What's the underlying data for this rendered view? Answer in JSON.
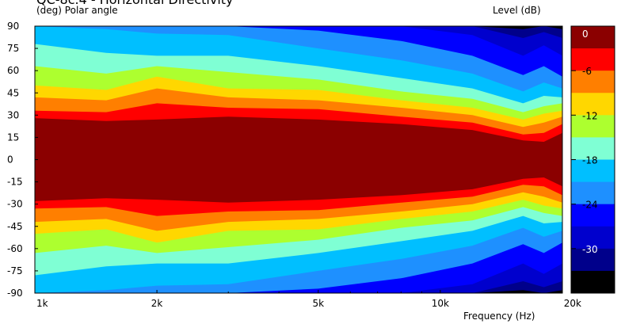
{
  "chart_data": {
    "type": "heatmap",
    "title": "QC-8c.4 - Horizontal Directivity",
    "ylabel": "(deg)  Polar angle",
    "xlabel": "Frequency  (Hz)",
    "legend_title": "Level  (dB)",
    "x_scale": "log",
    "xlim": [
      1000,
      20000
    ],
    "ylim": [
      -90,
      90
    ],
    "x_ticks": [
      {
        "value": 1000,
        "label": "1k"
      },
      {
        "value": 2000,
        "label": "2k"
      },
      {
        "value": 5000,
        "label": "5k"
      },
      {
        "value": 10000,
        "label": "10k"
      },
      {
        "value": 20000,
        "label": "20k"
      }
    ],
    "y_ticks": [
      90,
      75,
      60,
      45,
      30,
      15,
      0,
      -15,
      -30,
      -45,
      -60,
      -75,
      -90
    ],
    "colorbar": {
      "ticks": [
        0,
        -6,
        -12,
        -18,
        -24,
        -30
      ],
      "levels": [
        {
          "min": -3,
          "max": 0,
          "color": "#8b0000"
        },
        {
          "min": -6,
          "max": -3,
          "color": "#ff0000"
        },
        {
          "min": -9,
          "max": -6,
          "color": "#ff7f00"
        },
        {
          "min": -12,
          "max": -9,
          "color": "#ffd700"
        },
        {
          "min": -15,
          "max": -12,
          "color": "#adff2f"
        },
        {
          "min": -18,
          "max": -15,
          "color": "#7fffd4"
        },
        {
          "min": -21,
          "max": -18,
          "color": "#00bfff"
        },
        {
          "min": -24,
          "max": -21,
          "color": "#1e90ff"
        },
        {
          "min": -27,
          "max": -24,
          "color": "#0000ff"
        },
        {
          "min": -30,
          "max": -27,
          "color": "#0000cd"
        },
        {
          "min": -33,
          "max": -30,
          "color": "#00008b"
        },
        {
          "min": -36,
          "max": -33,
          "color": "#000000"
        }
      ]
    },
    "contours": [
      {
        "level": -3,
        "freqs": [
          1000,
          1500,
          2000,
          3000,
          5000,
          8000,
          12000,
          16000,
          18000,
          20000
        ],
        "angles": [
          28,
          26,
          27,
          29,
          27,
          24,
          20,
          13,
          12,
          18
        ]
      },
      {
        "level": -6,
        "freqs": [
          1000,
          1500,
          2000,
          3000,
          5000,
          8000,
          12000,
          16000,
          18000,
          20000
        ],
        "angles": [
          33,
          32,
          38,
          35,
          34,
          29,
          25,
          17,
          18,
          24
        ]
      },
      {
        "level": -9,
        "freqs": [
          1000,
          1500,
          2000,
          3000,
          5000,
          8000,
          12000,
          16000,
          18000,
          20000
        ],
        "angles": [
          42,
          40,
          48,
          42,
          40,
          35,
          30,
          22,
          25,
          29
        ]
      },
      {
        "level": -12,
        "freqs": [
          1000,
          1500,
          2000,
          3000,
          5000,
          8000,
          12000,
          16000,
          18000,
          20000
        ],
        "angles": [
          50,
          47,
          56,
          48,
          47,
          40,
          35,
          27,
          31,
          33
        ]
      },
      {
        "level": -15,
        "freqs": [
          1000,
          1500,
          2000,
          3000,
          5000,
          8000,
          12000,
          16000,
          18000,
          20000
        ],
        "angles": [
          63,
          58,
          63,
          59,
          54,
          46,
          41,
          32,
          36,
          38
        ]
      },
      {
        "level": -18,
        "freqs": [
          1000,
          1500,
          2000,
          3000,
          5000,
          8000,
          12000,
          16000,
          18000,
          20000
        ],
        "angles": [
          78,
          72,
          70,
          70,
          63,
          55,
          48,
          38,
          43,
          42
        ]
      },
      {
        "level": -21,
        "freqs": [
          1000,
          1500,
          2000,
          3000,
          5000,
          8000,
          12000,
          16000,
          18000,
          20000
        ],
        "angles": [
          90,
          88,
          85,
          84,
          75,
          67,
          58,
          46,
          52,
          48
        ]
      },
      {
        "level": -24,
        "freqs": [
          1000,
          1500,
          2000,
          3000,
          5000,
          8000,
          12000,
          16000,
          18000,
          20000
        ],
        "angles": [
          90,
          90,
          90,
          90,
          87,
          80,
          70,
          57,
          63,
          56
        ]
      },
      {
        "level": -27,
        "freqs": [
          1000,
          1500,
          2000,
          3000,
          5000,
          8000,
          12000,
          16000,
          18000,
          20000
        ],
        "angles": [
          90,
          90,
          90,
          90,
          90,
          90,
          84,
          70,
          77,
          70
        ]
      },
      {
        "level": -30,
        "freqs": [
          1000,
          1500,
          2000,
          3000,
          5000,
          8000,
          12000,
          16000,
          18000,
          20000
        ],
        "angles": [
          90,
          90,
          90,
          90,
          90,
          90,
          90,
          82,
          86,
          82
        ]
      },
      {
        "level": -33,
        "freqs": [
          1000,
          1500,
          2000,
          3000,
          5000,
          8000,
          12000,
          16000,
          18000,
          20000
        ],
        "angles": [
          90,
          90,
          90,
          90,
          90,
          90,
          90,
          88,
          90,
          88
        ]
      }
    ]
  }
}
